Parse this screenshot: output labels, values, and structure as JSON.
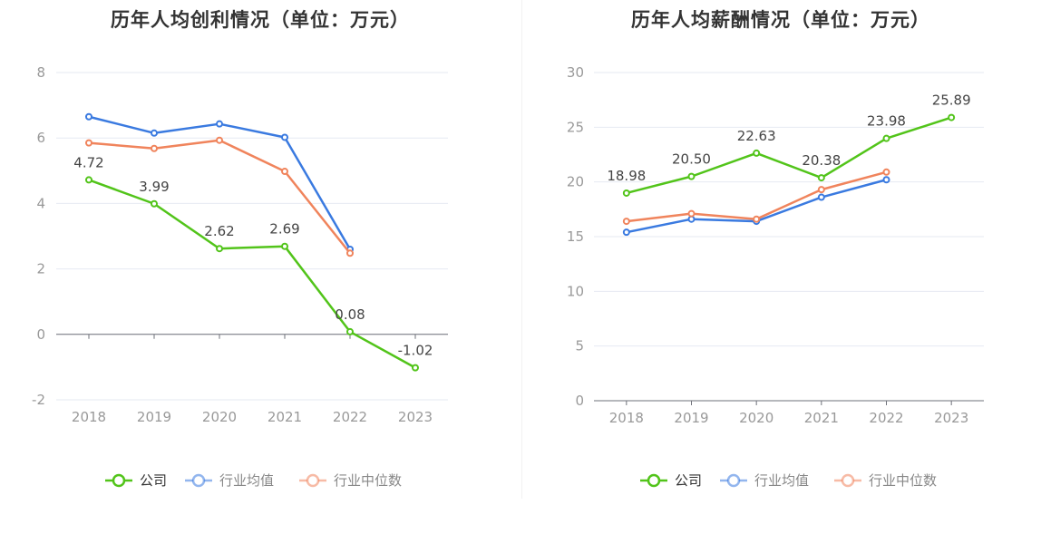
{
  "chart_data": [
    {
      "type": "line",
      "title": "历年人均创利情况（单位：万元）",
      "categories": [
        "2018",
        "2019",
        "2020",
        "2021",
        "2022",
        "2023"
      ],
      "ylim": [
        -2,
        8
      ],
      "yticks": [
        -2,
        0,
        2,
        4,
        6,
        8
      ],
      "grid": true,
      "legend_position": "bottom",
      "series": [
        {
          "name": "公司",
          "color": "#52c41a",
          "values": [
            4.72,
            3.99,
            2.62,
            2.69,
            0.08,
            -1.02
          ],
          "labels": [
            "4.72",
            "3.99",
            "2.62",
            "2.69",
            "0.08",
            "-1.02"
          ]
        },
        {
          "name": "行业均值",
          "color": "#3a7ae0",
          "values": [
            6.65,
            6.15,
            6.43,
            6.02,
            2.6,
            null
          ]
        },
        {
          "name": "行业中位数",
          "color": "#f0845c",
          "values": [
            5.85,
            5.68,
            5.93,
            4.98,
            2.48,
            null
          ]
        }
      ]
    },
    {
      "type": "line",
      "title": "历年人均薪酬情况（单位：万元）",
      "categories": [
        "2018",
        "2019",
        "2020",
        "2021",
        "2022",
        "2023"
      ],
      "ylim": [
        0,
        30
      ],
      "yticks": [
        0,
        5,
        10,
        15,
        20,
        25,
        30
      ],
      "grid": true,
      "legend_position": "bottom",
      "series": [
        {
          "name": "公司",
          "color": "#52c41a",
          "values": [
            18.98,
            20.5,
            22.63,
            20.38,
            23.98,
            25.89
          ],
          "labels": [
            "18.98",
            "20.50",
            "22.63",
            "20.38",
            "23.98",
            "25.89"
          ]
        },
        {
          "name": "行业均值",
          "color": "#3a7ae0",
          "values": [
            15.4,
            16.6,
            16.4,
            18.6,
            20.2,
            null
          ]
        },
        {
          "name": "行业中位数",
          "color": "#f0845c",
          "values": [
            16.4,
            17.1,
            16.6,
            19.3,
            20.9,
            null
          ]
        }
      ]
    }
  ]
}
